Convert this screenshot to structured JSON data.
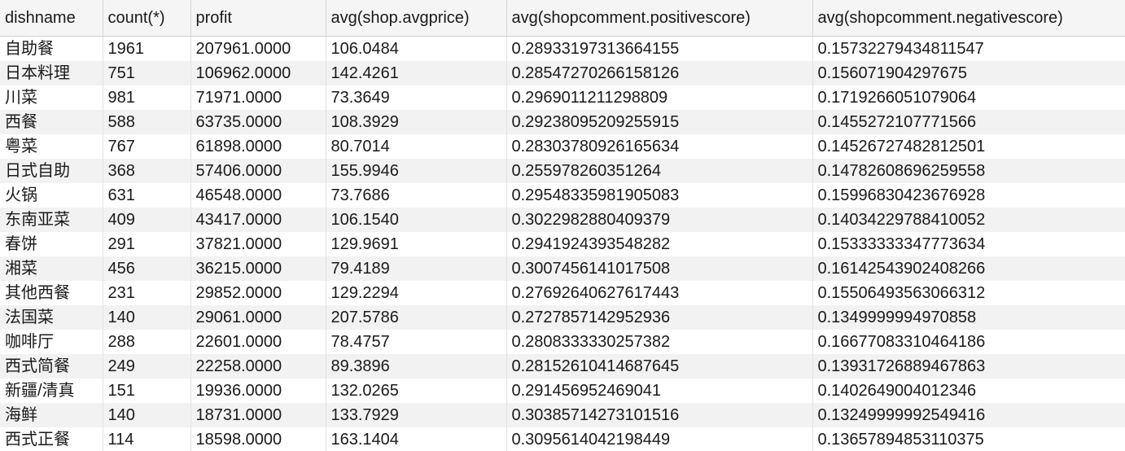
{
  "table": {
    "columns": [
      "dishname",
      "count(*)",
      "profit",
      "avg(shop.avgprice)",
      "avg(shopcomment.positivescore)",
      "avg(shopcomment.negativescore)"
    ],
    "rows": [
      [
        "自助餐",
        "1961",
        "207961.0000",
        "106.0484",
        "0.28933197313664155",
        "0.15732279434811547"
      ],
      [
        "日本料理",
        "751",
        "106962.0000",
        "142.4261",
        "0.28547270266158126",
        "0.156071904297675"
      ],
      [
        "川菜",
        "981",
        "71971.0000",
        "73.3649",
        "0.2969011211298809",
        "0.1719266051079064"
      ],
      [
        "西餐",
        "588",
        "63735.0000",
        "108.3929",
        "0.29238095209255915",
        "0.1455272107771566"
      ],
      [
        "粤菜",
        "767",
        "61898.0000",
        "80.7014",
        "0.28303780926165634",
        "0.14526727482812501"
      ],
      [
        "日式自助",
        "368",
        "57406.0000",
        "155.9946",
        "0.255978260351264",
        "0.14782608696259558"
      ],
      [
        "火锅",
        "631",
        "46548.0000",
        "73.7686",
        "0.29548335981905083",
        "0.15996830423676928"
      ],
      [
        "东南亚菜",
        "409",
        "43417.0000",
        "106.1540",
        "0.3022982880409379",
        "0.14034229788410052"
      ],
      [
        "春饼",
        "291",
        "37821.0000",
        "129.9691",
        "0.2941924393548282",
        "0.15333333347773634"
      ],
      [
        "湘菜",
        "456",
        "36215.0000",
        "79.4189",
        "0.3007456141017508",
        "0.16142543902408266"
      ],
      [
        "其他西餐",
        "231",
        "29852.0000",
        "129.2294",
        "0.27692640627617443",
        "0.15506493563066312"
      ],
      [
        "法国菜",
        "140",
        "29061.0000",
        "207.5786",
        "0.2727857142952936",
        "0.1349999994970858"
      ],
      [
        "咖啡厅",
        "288",
        "22601.0000",
        "78.4757",
        "0.2808333330257382",
        "0.16677083310464186"
      ],
      [
        "西式简餐",
        "249",
        "22258.0000",
        "89.3896",
        "0.28152610414687645",
        "0.13931726889467863"
      ],
      [
        "新疆/清真",
        "151",
        "19936.0000",
        "132.0265",
        "0.291456952469041",
        "0.1402649004012346"
      ],
      [
        "海鲜",
        "140",
        "18731.0000",
        "133.7929",
        "0.30385714273101516",
        "0.13249999992549416"
      ],
      [
        "西式正餐",
        "114",
        "18598.0000",
        "163.1404",
        "0.3095614042198449",
        "0.13657894853110375"
      ]
    ]
  }
}
